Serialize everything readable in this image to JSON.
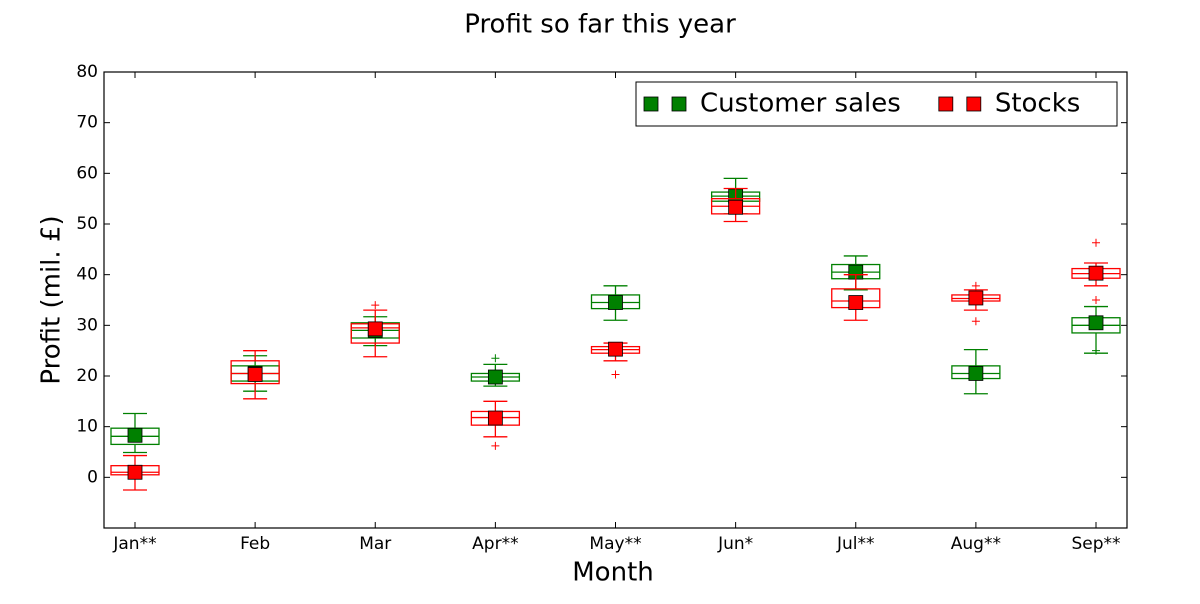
{
  "chart_data": {
    "type": "box",
    "title": "Profit so far this year",
    "x_label": "Month",
    "y_label": "Profit (mil. £)",
    "categories": [
      "Jan**",
      "Feb",
      "Mar",
      "Apr**",
      "May**",
      "Jun*",
      "Jul**",
      "Aug**",
      "Sep**"
    ],
    "ylim": [
      -10,
      80
    ],
    "yticks": [
      0,
      10,
      20,
      30,
      40,
      50,
      60,
      70,
      80
    ],
    "legend": "upper right",
    "series": [
      {
        "name": "Customer sales",
        "color": "#008000",
        "low": [
          4.9,
          17,
          26,
          18,
          31,
          52,
          37,
          16.5,
          24.5
        ],
        "q1": [
          6.5,
          19,
          27.5,
          19,
          33.3,
          54.5,
          39.2,
          19.5,
          28.5
        ],
        "median": [
          8.1,
          20.5,
          29,
          19.8,
          34.5,
          55.5,
          40.5,
          20.5,
          30
        ],
        "q3": [
          9.7,
          22,
          30.5,
          20.5,
          36,
          56.3,
          42,
          22,
          31.5
        ],
        "high": [
          12.6,
          24,
          31.7,
          22.3,
          37.8,
          59,
          43.7,
          25.2,
          33.7
        ],
        "mean": [
          8.3,
          20.5,
          29,
          19.8,
          34.5,
          55.5,
          40.5,
          20.5,
          30.5
        ],
        "outliers": [
          [],
          [],
          [],
          [
            23.5
          ],
          [],
          [],
          [],
          [],
          [
            25
          ]
        ]
      },
      {
        "name": "Stocks",
        "color": "#ff0000",
        "low": [
          -2.5,
          15.5,
          23.8,
          8,
          23,
          50.5,
          31,
          33,
          37.8
        ],
        "q1": [
          0.5,
          18.5,
          26.5,
          10.3,
          24.5,
          52,
          33.5,
          34.8,
          39.3
        ],
        "median": [
          1,
          20.5,
          29.5,
          11.8,
          25.2,
          53.5,
          34.8,
          35.3,
          40.2
        ],
        "q3": [
          2.3,
          23,
          30.3,
          13,
          25.8,
          55,
          37.2,
          36,
          41.2
        ],
        "high": [
          4.3,
          25,
          33,
          15,
          26.5,
          57,
          40,
          37,
          42.3
        ],
        "mean": [
          1,
          20.3,
          29.3,
          11.7,
          25.3,
          53.3,
          34.5,
          35.4,
          40.3
        ],
        "outliers": [
          [],
          [],
          [
            34
          ],
          [
            6.2
          ],
          [
            20.3
          ],
          [],
          [],
          [
            30.8,
            37.8
          ],
          [
            46.3,
            35
          ]
        ]
      }
    ]
  }
}
